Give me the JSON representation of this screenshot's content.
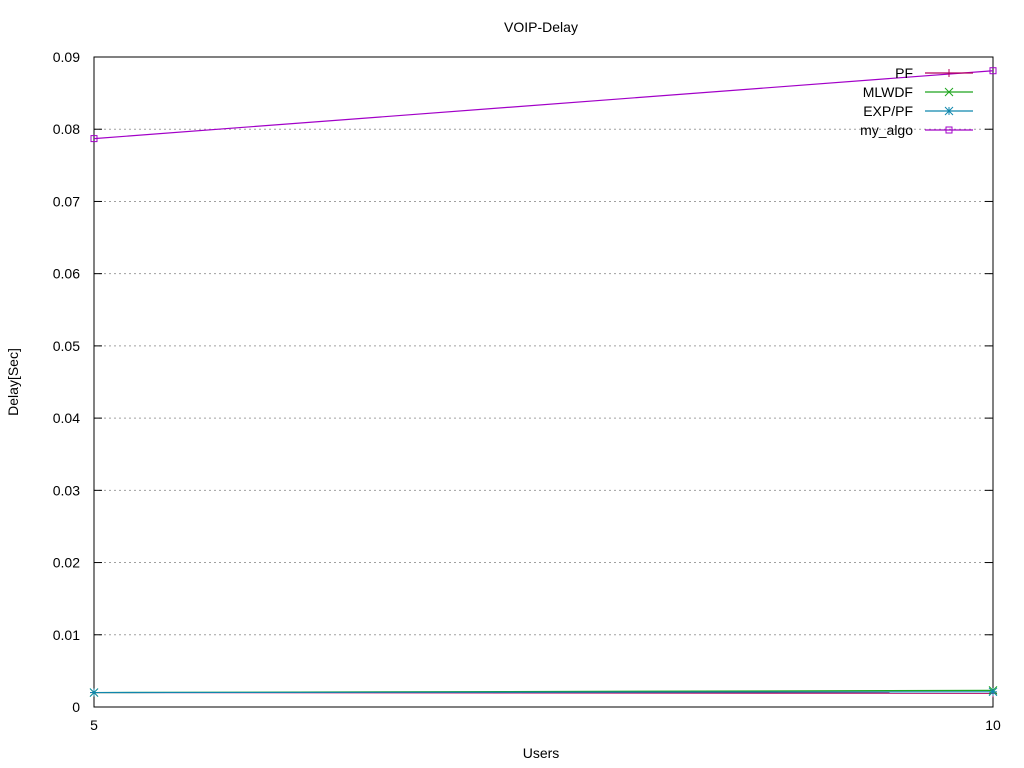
{
  "chart_data": {
    "type": "line",
    "title": "VOIP-Delay",
    "xlabel": "Users",
    "ylabel": "Delay[Sec]",
    "xlim": [
      5,
      10
    ],
    "ylim": [
      0,
      0.09
    ],
    "x_ticks": [
      "5",
      "10"
    ],
    "y_ticks": [
      "0",
      "0.01",
      "0.02",
      "0.03",
      "0.04",
      "0.05",
      "0.06",
      "0.07",
      "0.08",
      "0.09"
    ],
    "grid": "horizontal",
    "legend_position": "top-right",
    "x": [
      5,
      10
    ],
    "series": [
      {
        "name": "PF",
        "values": [
          0.002,
          0.0019
        ],
        "color": "#b3005e",
        "marker": "plus"
      },
      {
        "name": "MLWDF",
        "values": [
          0.002,
          0.0023
        ],
        "color": "#1ea51e",
        "marker": "cross"
      },
      {
        "name": "EXP/PF",
        "values": [
          0.002,
          0.0021
        ],
        "color": "#0f86ad",
        "marker": "star"
      },
      {
        "name": "my_algo",
        "values": [
          0.0787,
          0.0881
        ],
        "color": "#a200c8",
        "marker": "square"
      }
    ]
  }
}
